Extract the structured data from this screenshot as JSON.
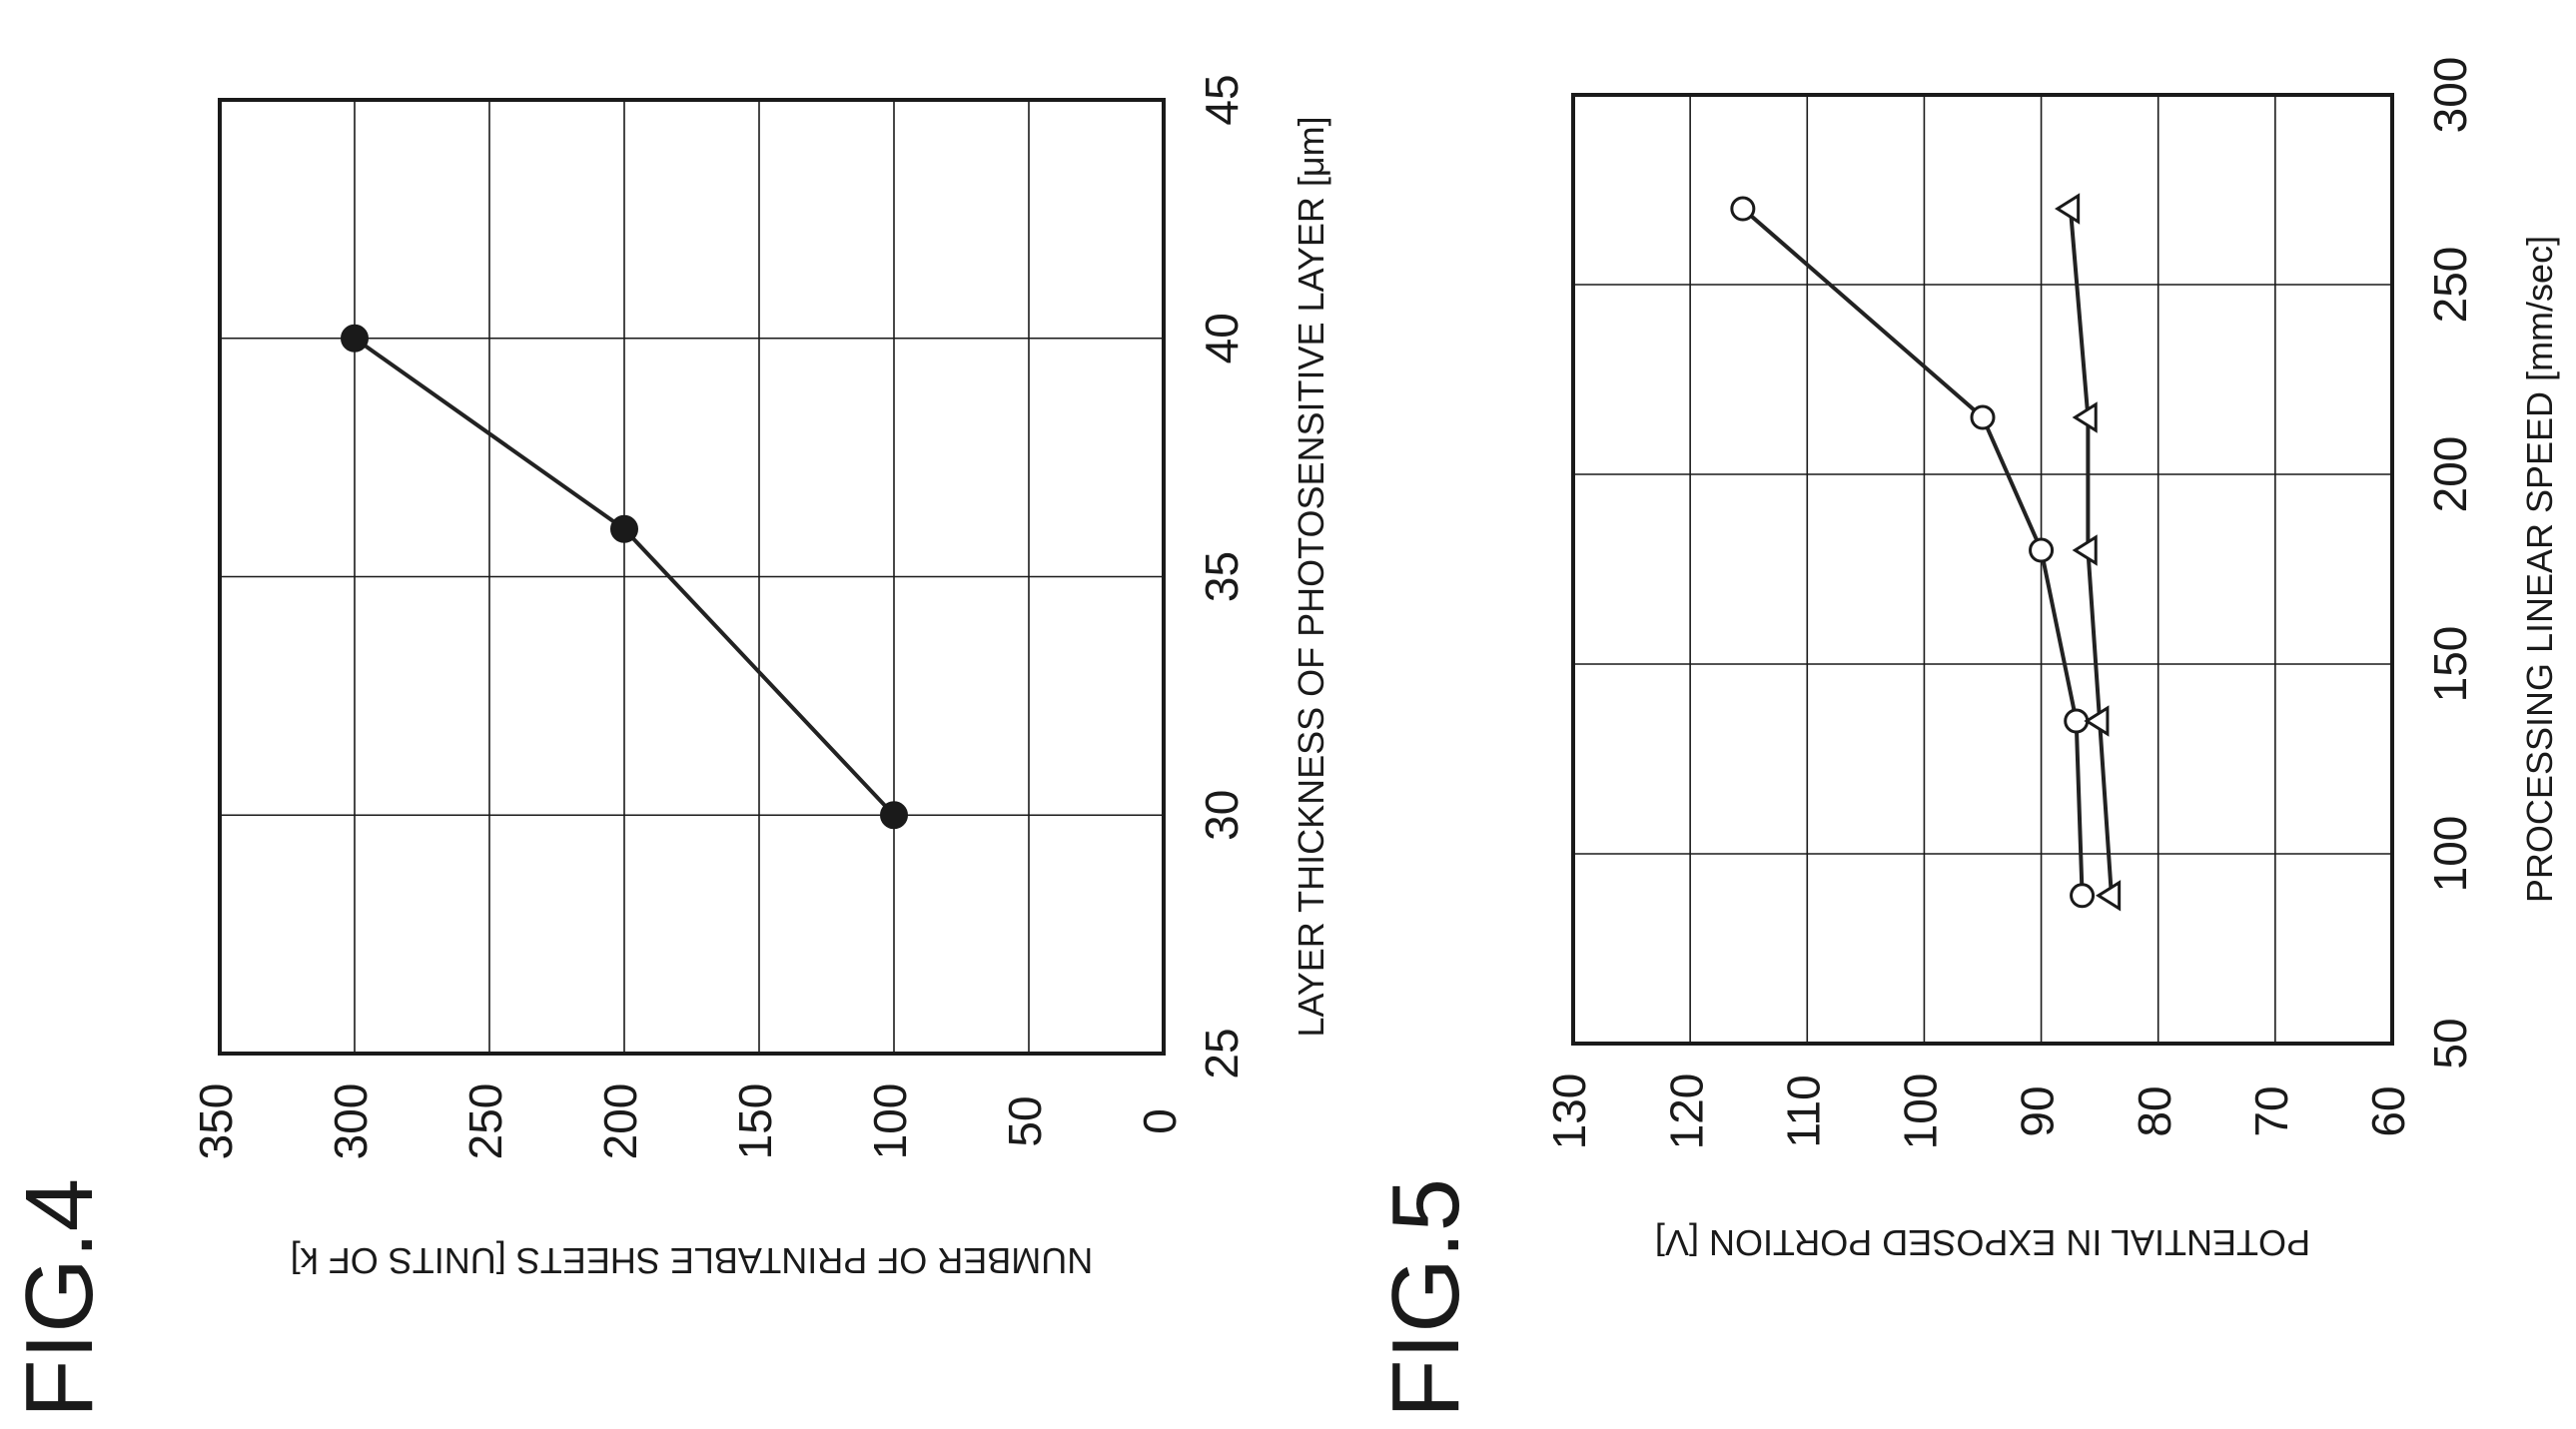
{
  "figures": {
    "fig4_label": "FIG.4",
    "fig5_label": "FIG.5"
  },
  "chart_data": [
    {
      "type": "line",
      "figure": "FIG.4",
      "xlabel": "LAYER THICKNESS OF PHOTOSENSITIVE LAYER [μm]",
      "ylabel": "NUMBER OF PRINTABLE SHEETS [UNITS OF k]",
      "xlim": [
        25,
        45
      ],
      "ylim": [
        0,
        350
      ],
      "x_ticks": [
        "25",
        "30",
        "35",
        "40",
        "45"
      ],
      "y_ticks": [
        "0",
        "50",
        "100",
        "150",
        "200",
        "250",
        "300",
        "350"
      ],
      "grid": true,
      "series": [
        {
          "marker": "filled-circle",
          "x": [
            30,
            36,
            40
          ],
          "y": [
            100,
            200,
            300
          ]
        }
      ]
    },
    {
      "type": "line",
      "figure": "FIG.5",
      "xlabel": "PROCESSING LINEAR SPEED [mm/sec]",
      "ylabel": "POTENTIAL IN EXPOSED PORTION [V]",
      "xlim": [
        50,
        300
      ],
      "ylim": [
        60,
        130
      ],
      "x_ticks": [
        "50",
        "100",
        "150",
        "200",
        "250",
        "300"
      ],
      "y_ticks": [
        "60",
        "70",
        "80",
        "90",
        "100",
        "110",
        "120",
        "130"
      ],
      "grid": true,
      "series": [
        {
          "marker": "open-circle",
          "x": [
            89,
            135,
            180,
            215,
            270
          ],
          "y": [
            86.5,
            87,
            90,
            95,
            115.5
          ]
        },
        {
          "marker": "open-triangle",
          "x": [
            89,
            135,
            180,
            215,
            270
          ],
          "y": [
            84,
            85,
            86,
            86,
            87.5
          ]
        }
      ]
    }
  ]
}
